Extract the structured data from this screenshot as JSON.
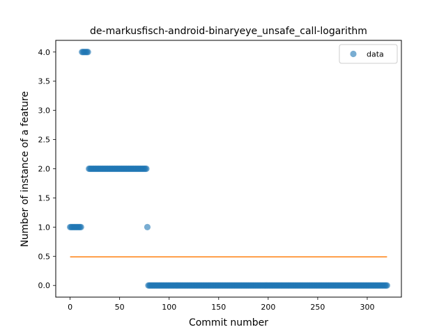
{
  "chart_data": {
    "type": "scatter",
    "title": "de-markusfisch-android-binaryeye_unsafe_call-logarithm",
    "xlabel": "Commit number",
    "ylabel": "Number of instance of a feature",
    "xlim": [
      -14.5,
      334.5
    ],
    "ylim": [
      -0.2,
      4.2
    ],
    "x_ticks": [
      0,
      50,
      100,
      150,
      200,
      250,
      300
    ],
    "y_ticks": [
      0.0,
      0.5,
      1.0,
      1.5,
      2.0,
      2.5,
      3.0,
      3.5,
      4.0
    ],
    "x_tick_labels": [
      "0",
      "50",
      "100",
      "150",
      "200",
      "250",
      "300"
    ],
    "y_tick_labels": [
      "0.0",
      "0.5",
      "1.0",
      "1.5",
      "2.0",
      "2.5",
      "3.0",
      "3.5",
      "4.0"
    ],
    "grid": false,
    "legend": {
      "position": "top-right",
      "entries": [
        "data"
      ]
    },
    "series": [
      {
        "name": "data",
        "kind": "scatter",
        "color": "#1f77b4",
        "alpha": 0.6,
        "segments": [
          {
            "x_start": 0,
            "x_end": 11,
            "y": 1.0
          },
          {
            "x_start": 12,
            "x_end": 18,
            "y": 4.0
          },
          {
            "x_start": 19,
            "x_end": 77,
            "y": 2.0
          },
          {
            "x_start": 78,
            "x_end": 78,
            "y": 1.0
          },
          {
            "x_start": 79,
            "x_end": 320,
            "y": 0.0
          }
        ]
      },
      {
        "kind": "line",
        "color": "#ff7f0e",
        "x": [
          0,
          320
        ],
        "y": [
          0.49,
          0.49
        ]
      }
    ]
  }
}
